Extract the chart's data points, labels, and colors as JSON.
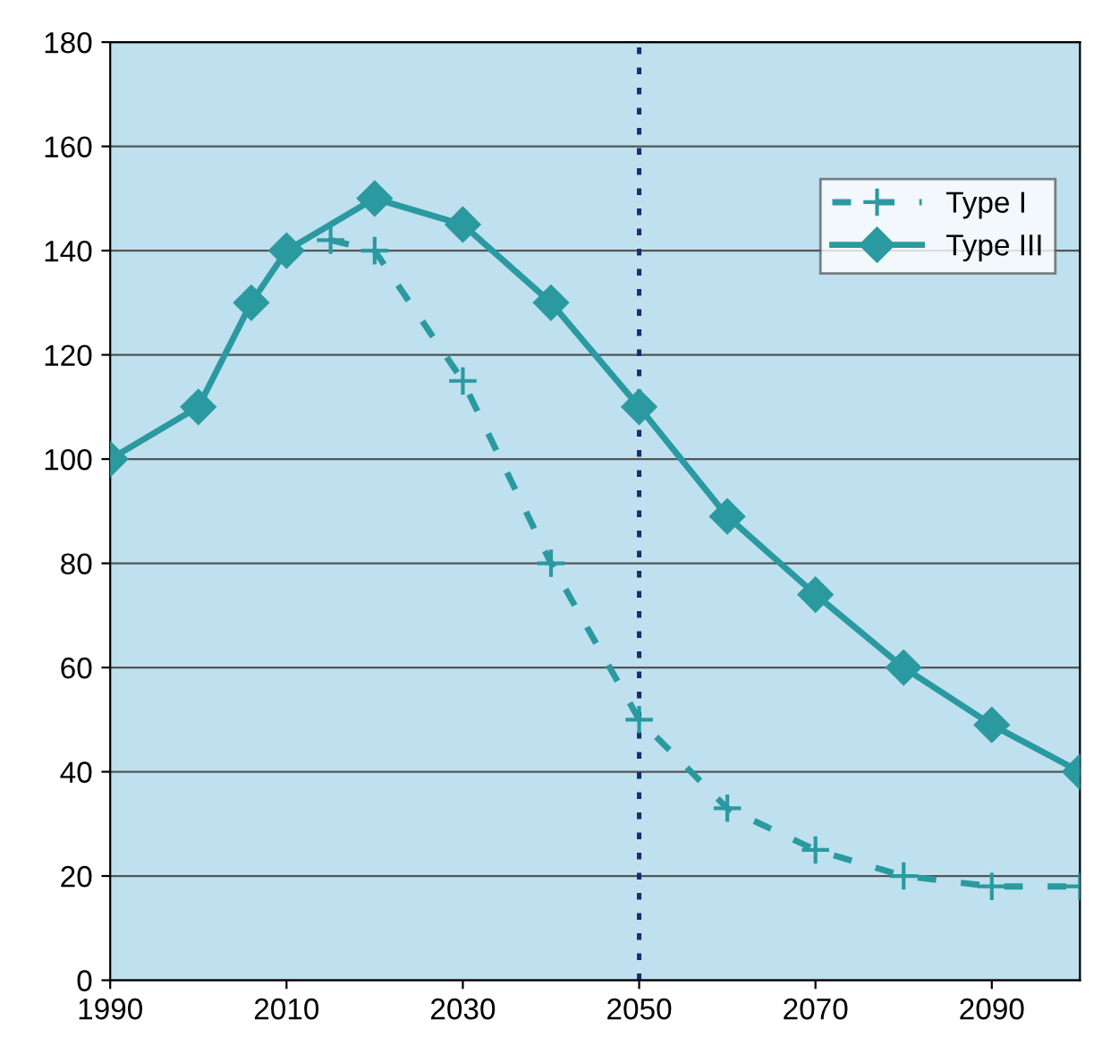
{
  "chart_data": {
    "type": "line",
    "xlim": [
      1990,
      2100
    ],
    "xticks": [
      1990,
      2010,
      2030,
      2050,
      2070,
      2090
    ],
    "ylim": [
      0,
      180
    ],
    "yticks": [
      0,
      20,
      40,
      60,
      80,
      100,
      120,
      140,
      160,
      180
    ],
    "grid": "y",
    "legend": "top right",
    "series": [
      {
        "name": "Type I",
        "color": "#2a9aa0",
        "line_style": "dashed",
        "marker": "cross",
        "x": [
          2015,
          2020,
          2030,
          2040,
          2050,
          2060,
          2070,
          2080,
          2090,
          2100
        ],
        "values": [
          142,
          140,
          115,
          80,
          50,
          33,
          25,
          20,
          18,
          18
        ]
      },
      {
        "name": "Type III",
        "color": "#2a9aa0",
        "line_style": "solid",
        "marker": "diamond",
        "x": [
          1990,
          2000,
          2006,
          2010,
          2020,
          2030,
          2040,
          2050,
          2060,
          2070,
          2080,
          2090,
          2100
        ],
        "values": [
          100,
          110,
          130,
          140,
          150,
          145,
          130,
          110,
          89,
          74,
          60,
          49,
          40
        ]
      }
    ],
    "ref_lines": [
      {
        "axis": "x",
        "value": 2050,
        "color": "#1f2a6e",
        "line_style": "dotted"
      }
    ]
  }
}
